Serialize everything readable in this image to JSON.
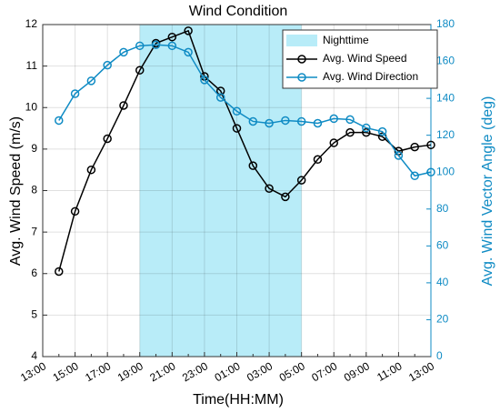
{
  "chart_data": {
    "type": "line",
    "title": "Wind Condition",
    "xlabel": "Time(HH:MM)",
    "ylabel": "Avg. Wind Speed (m/s)",
    "y2label": "Avg. Wind Vector Angle (deg)",
    "categories": [
      "13:00",
      null,
      "15:00",
      null,
      "17:00",
      null,
      "19:00",
      null,
      "21:00",
      null,
      "23:00",
      null,
      "01:00",
      null,
      "03:00",
      null,
      "05:00",
      null,
      "07:00",
      null,
      "09:00",
      null,
      "11:00",
      null,
      "13:00"
    ],
    "shaded": {
      "name": "Nighttime",
      "from": "19:00",
      "to": "05:00",
      "color": "#b8ecf8"
    },
    "series": [
      {
        "name": "Avg. Wind Speed",
        "color": "#000000",
        "values": [
          null,
          6.05,
          7.5,
          8.5,
          9.25,
          10.05,
          10.9,
          11.55,
          11.7,
          11.85,
          10.75,
          10.4,
          9.5,
          8.6,
          8.05,
          7.85,
          8.25,
          8.75,
          9.15,
          9.4,
          9.4,
          9.3,
          8.95,
          9.05,
          9.1
        ]
      },
      {
        "name": "Avg. Wind Direction",
        "color": "#0f8bc4",
        "axis": "y2",
        "values": [
          null,
          128,
          142.5,
          149.5,
          158,
          165,
          168.5,
          169,
          168.5,
          165,
          150,
          140.5,
          133,
          127.5,
          126.5,
          128,
          127.5,
          126.5,
          129,
          128.5,
          124,
          122,
          109,
          98,
          100
        ]
      }
    ],
    "ylim": [
      4,
      12
    ],
    "yticks": [
      4,
      5,
      6,
      7,
      8,
      9,
      10,
      11,
      12
    ],
    "y2lim": [
      0,
      180
    ],
    "y2ticks": [
      0,
      20,
      40,
      60,
      80,
      100,
      120,
      140,
      160,
      180
    ],
    "grid": true,
    "legend": "top-right"
  }
}
